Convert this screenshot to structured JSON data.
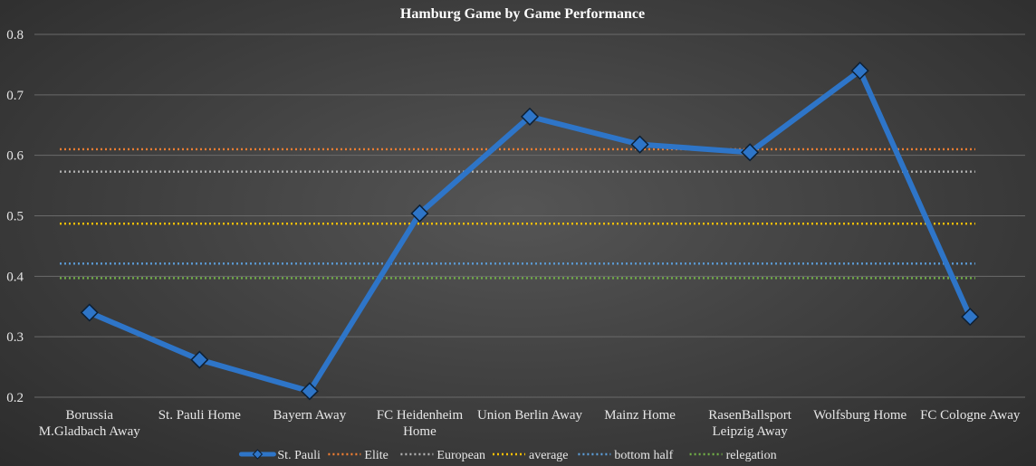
{
  "chart_data": {
    "type": "line",
    "title": "Hamburg Game by Game Performance",
    "xlabel": "",
    "ylabel": "",
    "ylim": [
      0.2,
      0.8
    ],
    "yticks": [
      "0.2",
      "0.3",
      "0.4",
      "0.5",
      "0.6",
      "0.7",
      "0.8"
    ],
    "grid": true,
    "legend_position": "bottom",
    "categories": [
      [
        "Borussia",
        "M.Gladbach Away"
      ],
      [
        "St. Pauli Home"
      ],
      [
        "Bayern Away"
      ],
      [
        "FC Heidenheim",
        "Home"
      ],
      [
        "Union Berlin Away"
      ],
      [
        "Mainz Home"
      ],
      [
        "RasenBallsport",
        "Leipzig Away"
      ],
      [
        "Wolfsburg Home"
      ],
      [
        "FC Cologne Away"
      ]
    ],
    "series": [
      {
        "name": "St. Pauli",
        "values": [
          0.34,
          0.262,
          0.21,
          0.504,
          0.664,
          0.618,
          0.605,
          0.74,
          0.333
        ],
        "color": "#2e75c8",
        "style": "line-marker"
      }
    ],
    "reference_lines": [
      {
        "name": "Elite",
        "value": 0.61,
        "color": "#ed7d31"
      },
      {
        "name": "European",
        "value": 0.573,
        "color": "#b0b0b0"
      },
      {
        "name": "average",
        "value": 0.487,
        "color": "#ffc000"
      },
      {
        "name": "bottom half",
        "value": 0.421,
        "color": "#5b9bd5"
      },
      {
        "name": "relegation",
        "value": 0.397,
        "color": "#70ad47"
      }
    ]
  }
}
